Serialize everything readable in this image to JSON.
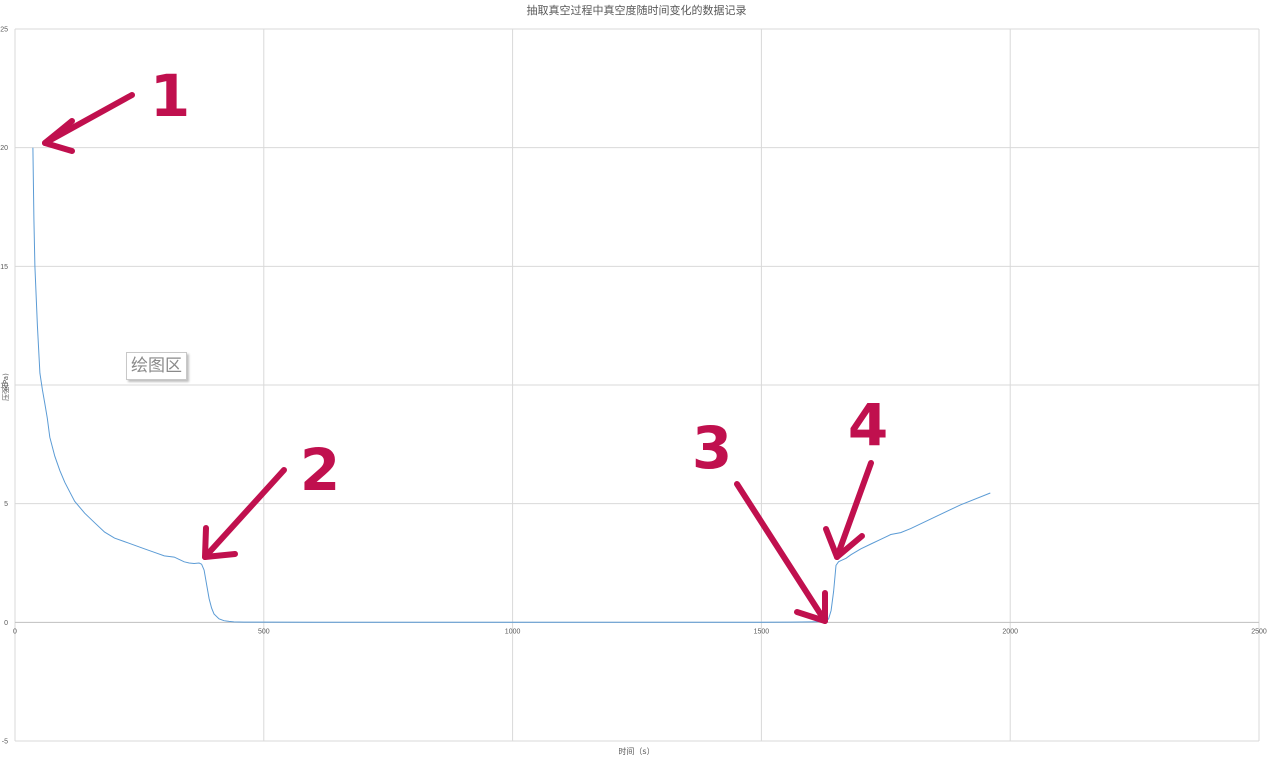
{
  "chart_data": {
    "type": "line",
    "title": "抽取真空过程中真空度随时间变化的数据记录",
    "xlabel": "时间（s）",
    "ylabel": "压强(Pa)",
    "xlim": [
      0,
      2500
    ],
    "ylim": [
      -5,
      25
    ],
    "xticks": [
      0,
      500,
      1000,
      1500,
      2000,
      2500
    ],
    "yticks": [
      -5,
      0,
      5,
      10,
      15,
      20,
      25
    ],
    "grid": true,
    "series": [
      {
        "color": "#5b9bd5",
        "x": [
          36,
          38,
          40,
          45,
          50,
          55,
          60,
          65,
          70,
          80,
          90,
          100,
          110,
          120,
          140,
          160,
          180,
          200,
          220,
          240,
          260,
          280,
          300,
          320,
          330,
          340,
          350,
          360,
          370,
          375,
          380,
          385,
          390,
          395,
          400,
          410,
          420,
          430,
          440,
          460,
          500,
          600,
          800,
          1000,
          1200,
          1400,
          1500,
          1560,
          1600,
          1620,
          1630,
          1635,
          1640,
          1645,
          1650,
          1655,
          1660,
          1670,
          1680,
          1700,
          1720,
          1740,
          1760,
          1780,
          1800,
          1850,
          1900,
          1960
        ],
        "values": [
          20,
          17,
          15,
          12.5,
          10.5,
          9.8,
          9.2,
          8.6,
          7.8,
          7.0,
          6.4,
          5.9,
          5.5,
          5.1,
          4.6,
          4.2,
          3.8,
          3.55,
          3.4,
          3.25,
          3.1,
          2.95,
          2.8,
          2.75,
          2.65,
          2.55,
          2.5,
          2.48,
          2.5,
          2.45,
          2.2,
          1.6,
          1.0,
          0.6,
          0.35,
          0.15,
          0.07,
          0.04,
          0.02,
          0.01,
          0.01,
          0.0,
          0.0,
          0.0,
          0.0,
          0.0,
          0.0,
          0.01,
          0.02,
          0.03,
          0.05,
          0.15,
          0.5,
          1.3,
          2.4,
          2.55,
          2.6,
          2.7,
          2.85,
          3.1,
          3.3,
          3.5,
          3.7,
          3.78,
          3.95,
          4.45,
          4.95,
          5.45
        ]
      }
    ],
    "annotations": [
      {
        "label": "1",
        "points_to": [
          36,
          20
        ]
      },
      {
        "label": "2",
        "points_to": [
          380,
          2.5
        ]
      },
      {
        "label": "3",
        "points_to": [
          1630,
          0
        ]
      },
      {
        "label": "4",
        "points_to": [
          1655,
          2.6
        ]
      }
    ]
  },
  "tooltip": {
    "text": "绘图区"
  },
  "colors": {
    "annotation": "#c0104e",
    "gridline": "#d9d9d9",
    "series": "#5b9bd5"
  }
}
